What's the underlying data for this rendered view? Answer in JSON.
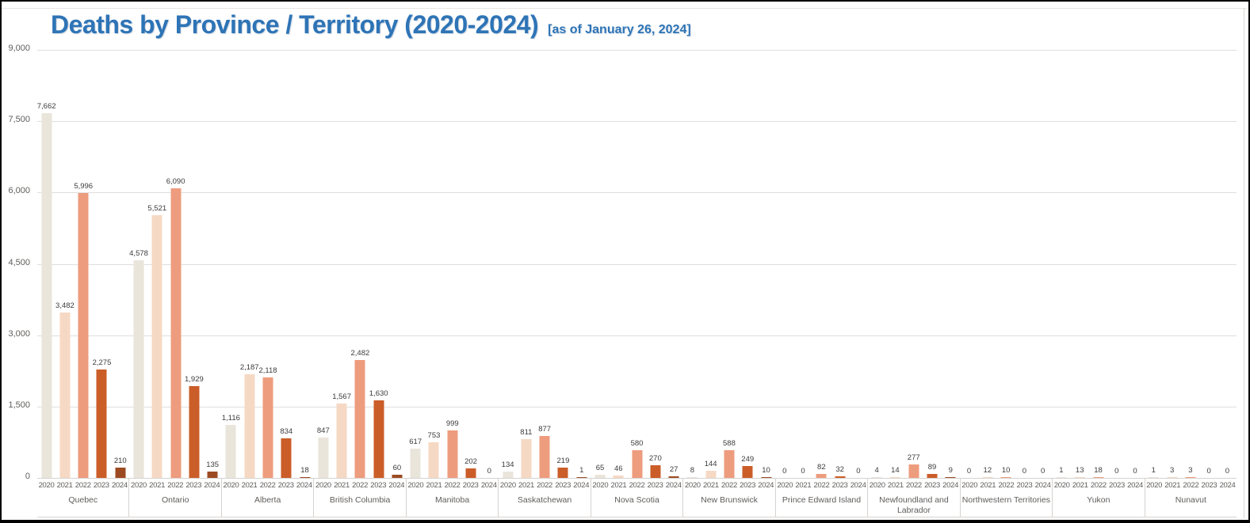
{
  "header": {
    "title": "Deaths by Province / Territory (2020-2024)",
    "subtitle": "[as of January 26, 2024]",
    "title_color": "#2e74b6"
  },
  "chart_data": {
    "type": "bar",
    "title": "Deaths by Province / Territory (2020-2024)",
    "subtitle": "[as of January 26, 2024]",
    "xlabel": "",
    "ylabel": "",
    "ylim": [
      0,
      9000
    ],
    "ytick_interval": 1500,
    "yticks": [
      9000,
      7500,
      6000,
      4500,
      3000,
      1500,
      0
    ],
    "ytick_labels": [
      "9,000",
      "7,500",
      "6,000",
      "4,500",
      "3,000",
      "1,500",
      "0"
    ],
    "grid": true,
    "legend_position": "none",
    "value_labels": true,
    "years": [
      "2020",
      "2021",
      "2022",
      "2023",
      "2024"
    ],
    "year_colors": [
      "#EAE5DB",
      "#F6D9C4",
      "#EE9C7E",
      "#CB5D28",
      "#9C4A21"
    ],
    "categories": [
      "Quebec",
      "Ontario",
      "Alberta",
      "British Columbia",
      "Manitoba",
      "Saskatchewan",
      "Nova Scotia",
      "New Brunswick",
      "Prince Edward Island",
      "Newfoundland and Labrador",
      "Northwestern Territories",
      "Yukon",
      "Nunavut"
    ],
    "provinces": [
      {
        "name": "Quebec",
        "values": [
          7662,
          3482,
          5996,
          2275,
          210
        ]
      },
      {
        "name": "Ontario",
        "values": [
          4578,
          5521,
          6090,
          1929,
          135
        ]
      },
      {
        "name": "Alberta",
        "values": [
          1116,
          2187,
          2118,
          834,
          18
        ]
      },
      {
        "name": "British Columbia",
        "values": [
          847,
          1567,
          2482,
          1630,
          60
        ]
      },
      {
        "name": "Manitoba",
        "values": [
          617,
          753,
          999,
          202,
          0
        ]
      },
      {
        "name": "Saskatchewan",
        "values": [
          134,
          811,
          877,
          219,
          1
        ]
      },
      {
        "name": "Nova Scotia",
        "values": [
          65,
          46,
          580,
          270,
          27
        ]
      },
      {
        "name": "New Brunswick",
        "values": [
          8,
          144,
          588,
          249,
          10
        ]
      },
      {
        "name": "Prince Edward Island",
        "values": [
          0,
          0,
          82,
          32,
          0
        ]
      },
      {
        "name": "Newfoundland and Labrador",
        "values": [
          4,
          14,
          277,
          89,
          9
        ]
      },
      {
        "name": "Northwestern Territories",
        "values": [
          0,
          12,
          10,
          0,
          0
        ]
      },
      {
        "name": "Yukon",
        "values": [
          1,
          13,
          18,
          0,
          0
        ]
      },
      {
        "name": "Nunavut",
        "values": [
          1,
          3,
          3,
          0,
          0
        ]
      }
    ]
  }
}
